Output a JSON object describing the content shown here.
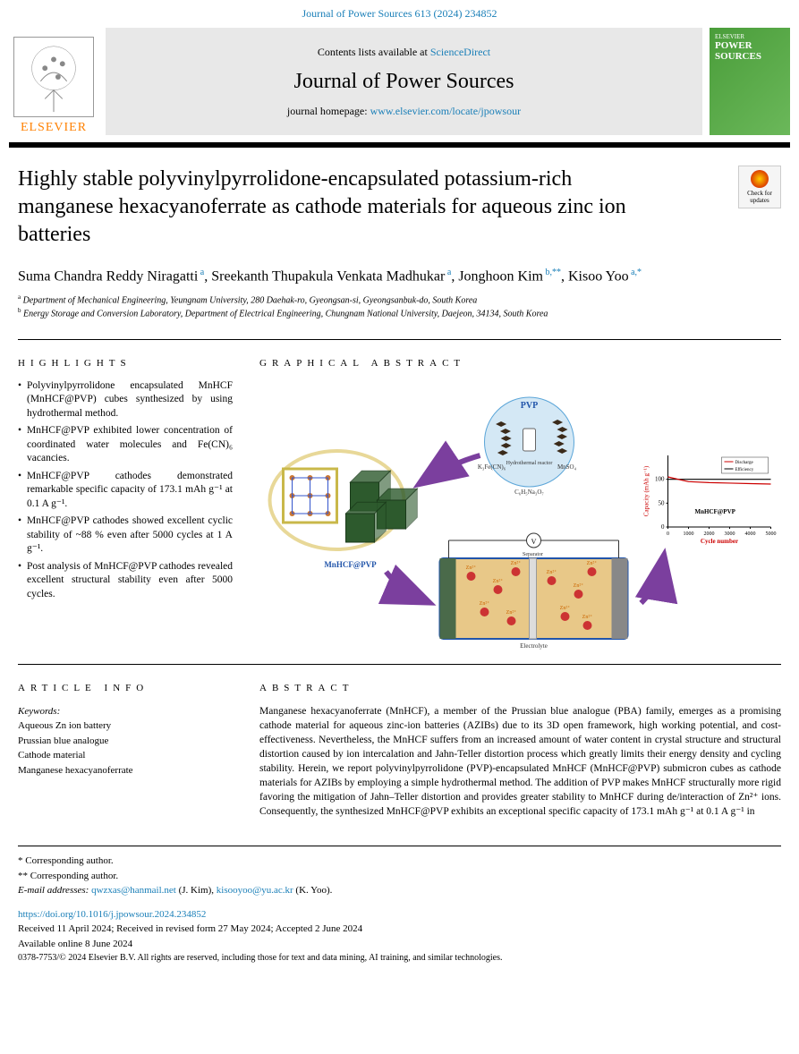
{
  "header": {
    "citation": "Journal of Power Sources 613 (2024) 234852",
    "contents_prefix": "Contents lists available at ",
    "contents_link": "ScienceDirect",
    "journal_name": "Journal of Power Sources",
    "homepage_prefix": "journal homepage: ",
    "homepage_url": "www.elsevier.com/locate/jpowsour",
    "elsevier": "ELSEVIER",
    "cover_publisher": "ELSEVIER",
    "cover_title": "POWER SOURCES",
    "check_updates": "Check for updates"
  },
  "article": {
    "title": "Highly stable polyvinylpyrrolidone-encapsulated potassium-rich manganese hexacyanoferrate as cathode materials for aqueous zinc ion batteries",
    "authors_html": "Suma Chandra Reddy Niragatti<sup> a</sup>, Sreekanth Thupakula Venkata Madhukar<sup> a</sup>, Jonghoon Kim<sup> b,**</sup>, Kisoo Yoo<sup> a,*</sup>",
    "affiliations": [
      {
        "sup": "a",
        "text": "Department of Mechanical Engineering, Yeungnam University, 280 Daehak-ro, Gyeongsan-si, Gyeongsanbuk-do, South Korea"
      },
      {
        "sup": "b",
        "text": "Energy Storage and Conversion Laboratory, Department of Electrical Engineering, Chungnam National University, Daejeon, 34134, South Korea"
      }
    ]
  },
  "sections": {
    "highlights_heading": "HIGHLIGHTS",
    "graphical_heading": "GRAPHICAL ABSTRACT",
    "info_heading": "ARTICLE INFO",
    "abstract_heading": "ABSTRACT"
  },
  "highlights": [
    "Polyvinylpyrrolidone encapsulated MnHCF (MnHCF@PVP) cubes synthesized by using hydrothermal method.",
    "MnHCF@PVP exhibited lower concentration of coordinated water molecules and Fe(CN)₆ vacancies.",
    "MnHCF@PVP cathodes demonstrated remarkable specific capacity of 173.1 mAh g⁻¹ at 0.1 A g⁻¹.",
    "MnHCF@PVP cathodes showed excellent cyclic stability of ~88 % even after 5000 cycles at 1 A g⁻¹.",
    "Post analysis of MnHCF@PVP cathodes revealed excellent structural stability even after 5000 cycles."
  ],
  "keywords": {
    "label": "Keywords:",
    "items": [
      "Aqueous Zn ion battery",
      "Prussian blue analogue",
      "Cathode material",
      "Manganese hexacyanoferrate"
    ]
  },
  "abstract": "Manganese hexacyanoferrate (MnHCF), a member of the Prussian blue analogue (PBA) family, emerges as a promising cathode material for aqueous zinc-ion batteries (AZIBs) due to its 3D open framework, high working potential, and cost-effectiveness. Nevertheless, the MnHCF suffers from an increased amount of water content in crystal structure and structural distortion caused by ion intercalation and Jahn-Teller distortion process which greatly limits their energy density and cycling stability. Herein, we report polyvinylpyrrolidone (PVP)-encapsulated MnHCF (MnHCF@PVP) submicron cubes as cathode materials for AZIBs by employing a simple hydrothermal method. The addition of PVP makes MnHCF structurally more rigid favoring the mitigation of Jahn–Teller distortion and provides greater stability to MnHCF during de/interaction of Zn²⁺ ions. Consequently, the synthesized MnHCF@PVP exhibits an exceptional specific capacity of 173.1 mAh g⁻¹ at 0.1 A g⁻¹ in",
  "graphical_abstract": {
    "type": "infographic",
    "background_color": "#ffffff",
    "arrow_color": "#7b3f9e",
    "elements": {
      "pvp_circle": {
        "label": "PVP",
        "subtext": "Hydrothermal reactor",
        "bg": "#d4e8f5",
        "border": "#5aa5d8"
      },
      "reagent_left": "K₃Fe(CN)₆",
      "reagent_right": "MnSO₄",
      "reagent_bottom": "C₆H₅Na₃O₇",
      "cubes_label": "MnHCF@PVP",
      "cube_color": "#2d5a2d",
      "lattice_border": "#c9b84a",
      "battery_schematic": {
        "electrolyte_label": "Electrolyte",
        "separator_label": "Separator",
        "zn_label": "Zn²⁺",
        "bg_color": "#e8c888",
        "ion_color": "#cc3333"
      },
      "chart": {
        "type": "line",
        "title": "",
        "xlabel": "Cycle number",
        "ylabel": "Capacity (mAh g⁻¹)",
        "ylabel_right": "Efficiency",
        "legend": [
          "Discharge",
          "Efficiency"
        ],
        "legend_loc": "upper-right-inset",
        "sample_label": "MnHCF@PVP",
        "xlim": [
          0,
          5000
        ],
        "xticks": [
          0,
          1000,
          2000,
          3000,
          4000,
          5000
        ],
        "ylim": [
          0,
          150
        ],
        "yticks": [
          0,
          50,
          100
        ],
        "discharge_color": "#cc0000",
        "efficiency_color": "#000000",
        "discharge_values": [
          105,
          95,
          93,
          92,
          91,
          90
        ],
        "efficiency_values": [
          100,
          100,
          100,
          100,
          100,
          100
        ],
        "axis_color": "#000000",
        "font_size": 7
      }
    }
  },
  "footer": {
    "corr1": "* Corresponding author.",
    "corr2": "** Corresponding author.",
    "email_label": "E-mail addresses:",
    "email1": "qwzxas@hanmail.net",
    "email1_name": "(J. Kim),",
    "email2": "kisooyoo@yu.ac.kr",
    "email2_name": "(K. Yoo).",
    "doi": "https://doi.org/10.1016/j.jpowsour.2024.234852",
    "dates": "Received 11 April 2024; Received in revised form 27 May 2024; Accepted 2 June 2024",
    "available": "Available online 8 June 2024",
    "copyright": "0378-7753/© 2024 Elsevier B.V. All rights are reserved, including those for text and data mining, AI training, and similar technologies."
  }
}
